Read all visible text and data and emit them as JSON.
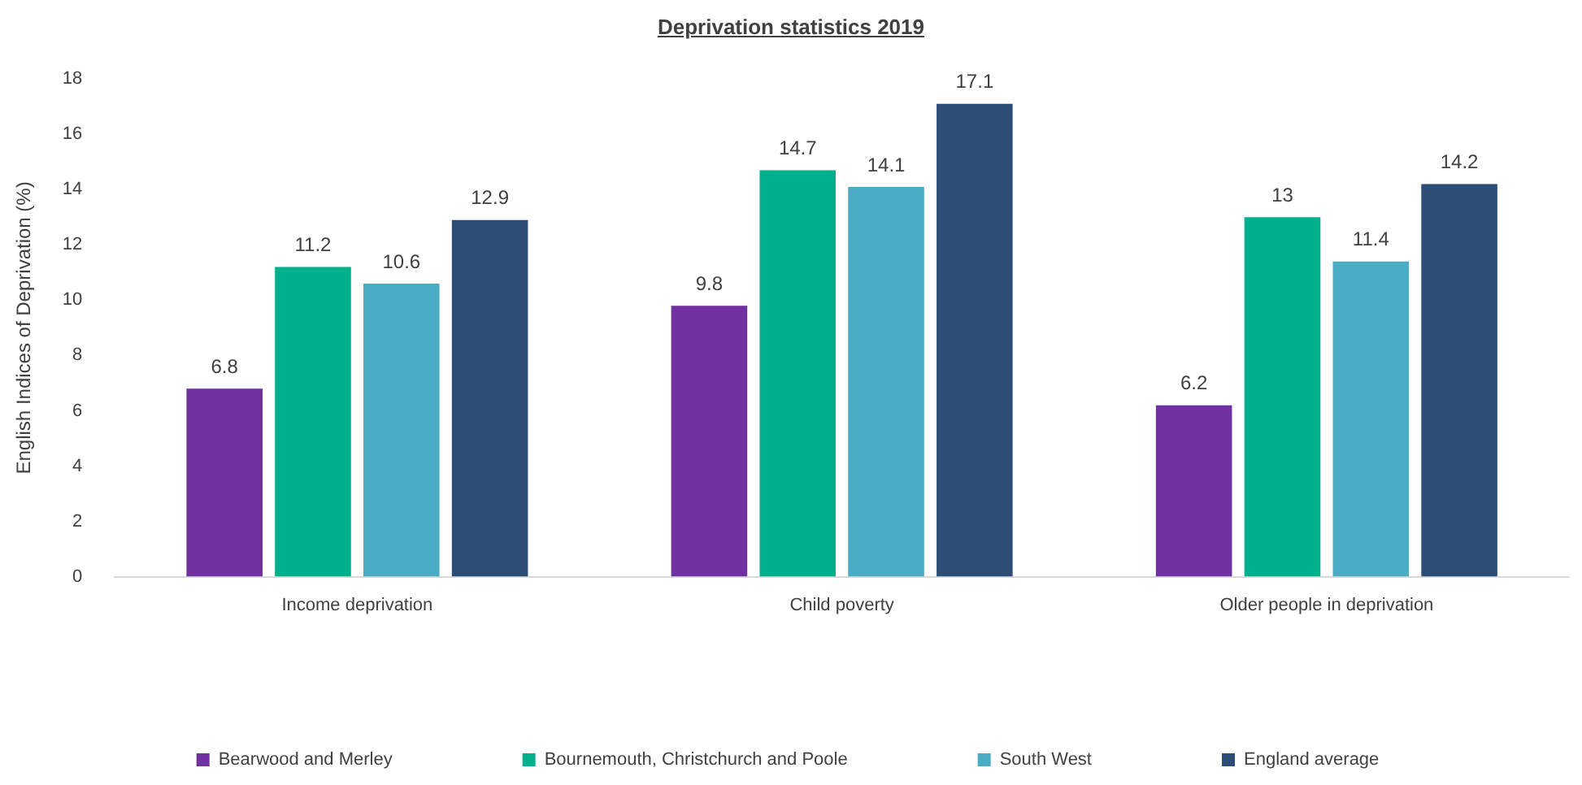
{
  "chart_data": {
    "type": "bar",
    "title": "Deprivation statistics 2019",
    "ylabel": "English Indices of Deprivation (%)",
    "categories": [
      "Income deprivation",
      "Child poverty",
      "Older people in deprivation"
    ],
    "series": [
      {
        "name": "Bearwood and Merley",
        "color": "#7030a0",
        "values": [
          6.8,
          9.8,
          6.2
        ]
      },
      {
        "name": "Bournemouth, Christchurch and Poole",
        "color": "#00b08c",
        "values": [
          11.2,
          14.7,
          13
        ]
      },
      {
        "name": "South West",
        "color": "#4bacc6",
        "values": [
          10.6,
          14.1,
          11.4
        ]
      },
      {
        "name": "England average",
        "color": "#2c4d75",
        "values": [
          12.9,
          17.1,
          14.2
        ]
      }
    ],
    "ylim": [
      0,
      18
    ],
    "yticks": [
      0,
      2,
      4,
      6,
      8,
      10,
      12,
      14,
      16,
      18
    ],
    "grid": false,
    "legend": "bottom",
    "data_labels": true
  }
}
